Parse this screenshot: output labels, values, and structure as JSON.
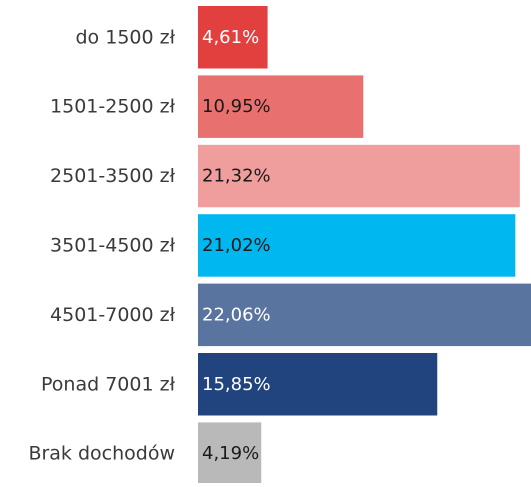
{
  "chart_data": {
    "type": "bar",
    "orientation": "horizontal",
    "categories": [
      "do 1500 zł",
      "1501-2500 zł",
      "2501-3500 zł",
      "3501-4500 zł",
      "4501-7000 zł",
      "Ponad 7001 zł",
      "Brak dochodów"
    ],
    "values": [
      4.61,
      10.95,
      21.32,
      21.02,
      22.06,
      15.85,
      4.19
    ],
    "value_labels": [
      "4,61%",
      "10,95%",
      "21,32%",
      "21,02%",
      "22,06%",
      "15,85%",
      "4,19%"
    ],
    "colors": [
      "#e2403f",
      "#e8716f",
      "#ef9e9d",
      "#00b7ef",
      "#5a74a0",
      "#22447e",
      "#b9b9b9"
    ],
    "value_label_colors": [
      "#ffffff",
      "#1a1a1a",
      "#1a1a1a",
      "#1a1a1a",
      "#ffffff",
      "#ffffff",
      "#1a1a1a"
    ]
  }
}
